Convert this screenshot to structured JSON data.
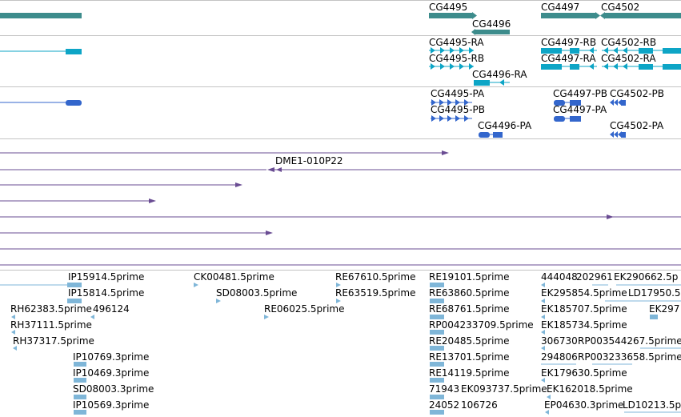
{
  "colors": {
    "gene": "#3d8c8c",
    "transcript": "#0da5c6",
    "protein": "#3366cc",
    "clone": "#6a4c93",
    "est": "#7fb6d8",
    "separator": "#c4c4c4"
  },
  "genes": [
    {
      "name": "CG4495"
    },
    {
      "name": "CG4496"
    },
    {
      "name": "CG4497"
    },
    {
      "name": "CG4502"
    }
  ],
  "transcripts": [
    {
      "name": "CG4495-RA"
    },
    {
      "name": "CG4495-RB"
    },
    {
      "name": "CG4496-RA"
    },
    {
      "name": "CG4497-RB"
    },
    {
      "name": "CG4497-RA"
    },
    {
      "name": "CG4502-RB"
    },
    {
      "name": "CG4502-RA"
    }
  ],
  "proteins": [
    {
      "name": "CG4495-PA"
    },
    {
      "name": "CG4495-PB"
    },
    {
      "name": "CG4496-PA"
    },
    {
      "name": "CG4497-PB"
    },
    {
      "name": "CG4497-PA"
    },
    {
      "name": "CG4502-PB"
    },
    {
      "name": "CG4502-PA"
    }
  ],
  "clones": [
    {
      "name": "DME1-010P22"
    }
  ],
  "ests": [
    {
      "name": "IP15914.5prime"
    },
    {
      "name": "IP15814.5prime"
    },
    {
      "name": "RH62383.5prime"
    },
    {
      "name": "496124"
    },
    {
      "name": "RH37111.5prime"
    },
    {
      "name": "RH37317.5prime"
    },
    {
      "name": "IP10769.3prime"
    },
    {
      "name": "IP10469.3prime"
    },
    {
      "name": "SD08003.3prime"
    },
    {
      "name": "IP10569.3prime"
    },
    {
      "name": "CK00481.5prime"
    },
    {
      "name": "SD08003.5prime"
    },
    {
      "name": "RE67610.5prime"
    },
    {
      "name": "RE63519.5prime"
    },
    {
      "name": "RE06025.5prime"
    },
    {
      "name": "RE19101.5prime"
    },
    {
      "name": "RE63860.5prime"
    },
    {
      "name": "RE68761.5prime"
    },
    {
      "name": "RP004233709.5prime"
    },
    {
      "name": "RE20485.5prime"
    },
    {
      "name": "RE13701.5prime"
    },
    {
      "name": "RE14119.5prime"
    },
    {
      "name": "71943"
    },
    {
      "name": "EK093737.5prime"
    },
    {
      "name": "24052"
    },
    {
      "name": "106726"
    },
    {
      "name": "444048"
    },
    {
      "name": "202961"
    },
    {
      "name": "EK290662.5p"
    },
    {
      "name": "EK295854.5prime"
    },
    {
      "name": "LD17950.5"
    },
    {
      "name": "EK185707.5prime"
    },
    {
      "name": "EK297"
    },
    {
      "name": "EK185734.5prime"
    },
    {
      "name": "306730"
    },
    {
      "name": "RP003544267.5prime"
    },
    {
      "name": "294806"
    },
    {
      "name": "RP003233658.5prime"
    },
    {
      "name": "EK179630.5prime"
    },
    {
      "name": "EK162018.5prime"
    },
    {
      "name": "EP04630.3prime"
    },
    {
      "name": "LD10213.5p"
    }
  ]
}
